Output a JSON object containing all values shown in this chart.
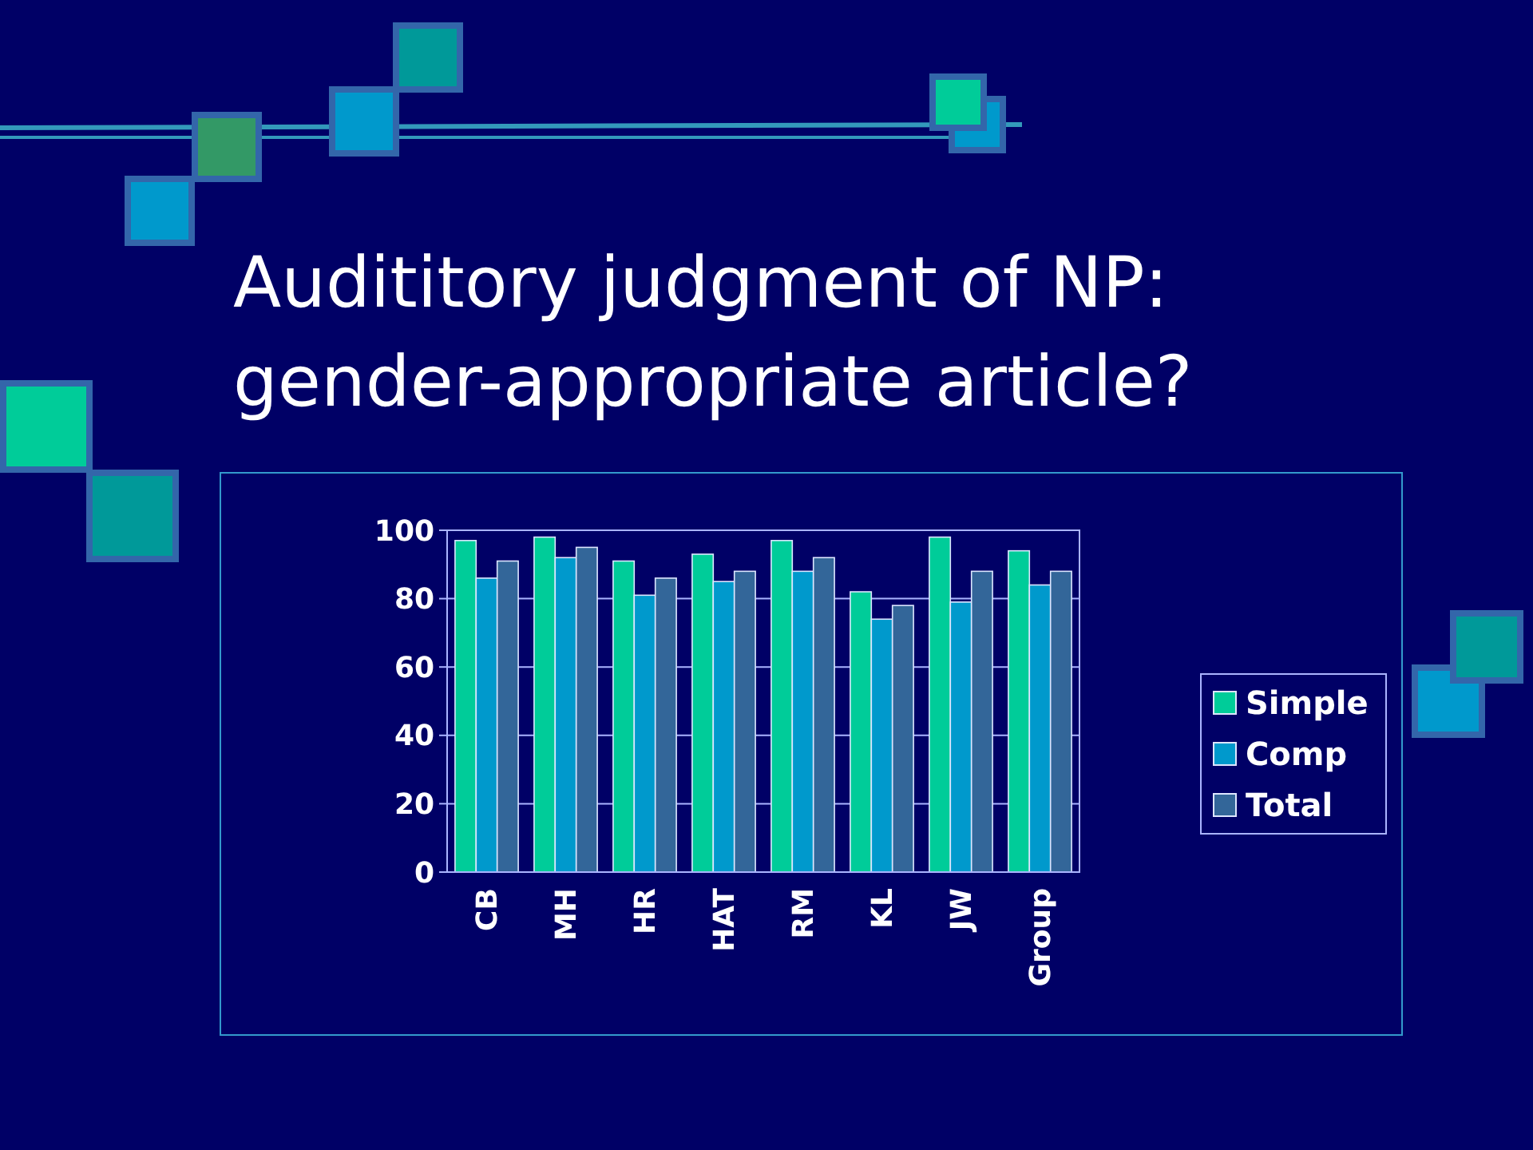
{
  "chart_data": {
    "type": "bar",
    "title": "Audititory judgment of NP:\ngender-appropriate article?",
    "categories": [
      "CB",
      "MH",
      "HR",
      "HAT",
      "RM",
      "KL",
      "JW",
      "Group"
    ],
    "series": [
      {
        "name": "Simple",
        "color": "#00cc99",
        "values": [
          97,
          98,
          91,
          93,
          97,
          82,
          98,
          94
        ]
      },
      {
        "name": "Comp",
        "color": "#0099cc",
        "values": [
          86,
          92,
          81,
          85,
          88,
          74,
          79,
          84
        ]
      },
      {
        "name": "Total",
        "color": "#336699",
        "values": [
          91,
          95,
          86,
          88,
          92,
          78,
          88,
          88
        ]
      }
    ],
    "ylim": [
      0,
      100
    ],
    "yticks": [
      0,
      20,
      40,
      60,
      80,
      100
    ],
    "grid": "y",
    "legend": "right"
  }
}
